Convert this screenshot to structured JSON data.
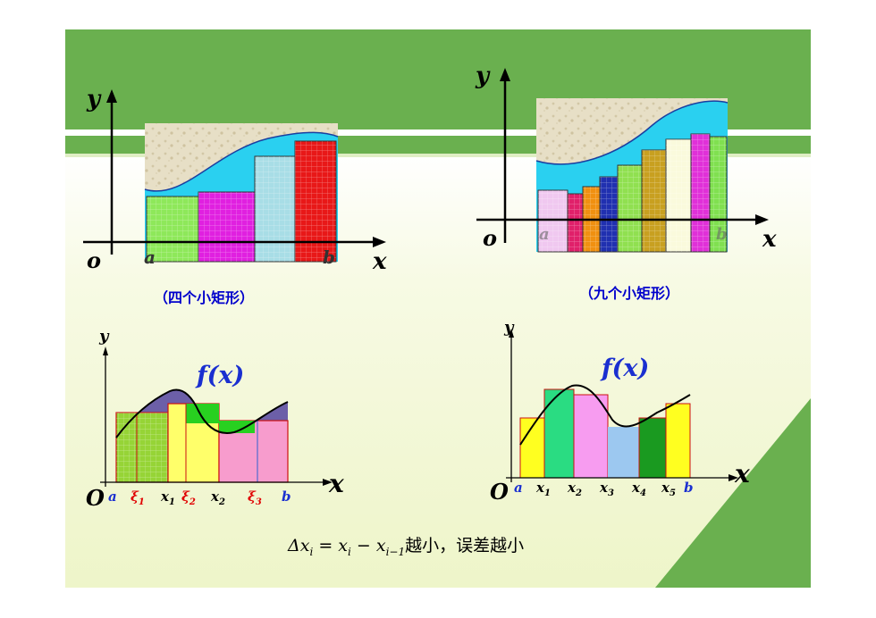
{
  "top_left": {
    "y_label": "y",
    "origin_label": "o",
    "x_label": "x",
    "a_label": "a",
    "b_label": "b",
    "caption": "（四个小矩形）",
    "rect_colors": [
      "#8ee85a",
      "#e020e0",
      "#a8dde6",
      "#e81818"
    ]
  },
  "top_right": {
    "y_label": "y",
    "origin_label": "o",
    "x_label": "x",
    "a_label": "a",
    "b_label": "b",
    "caption": "（九个小矩形）",
    "rect_colors": [
      "#f0c8f0",
      "#e0206a",
      "#f09010",
      "#2030b0",
      "#90e050",
      "#c8a020",
      "#fafadc",
      "#e030d8",
      "#80e050"
    ]
  },
  "bottom_left": {
    "y_label": "y",
    "function_label": "f(x)",
    "origin_label": "O",
    "x_label": "x",
    "ticks": [
      {
        "text": "a",
        "color": "#1a2fd0"
      },
      {
        "text": "ξ",
        "sub": "1",
        "color": "#e00000"
      },
      {
        "text": "x",
        "sub": "1",
        "color": "#000000"
      },
      {
        "text": "ξ",
        "sub": "2",
        "color": "#e00000"
      },
      {
        "text": "x",
        "sub": "2",
        "color": "#000000"
      },
      {
        "text": "ξ",
        "sub": "3",
        "color": "#e00000"
      },
      {
        "text": "b",
        "color": "#1a2fd0"
      }
    ]
  },
  "bottom_right": {
    "y_label": "y",
    "function_label": "f(x)",
    "origin_label": "O",
    "x_label": "x",
    "ticks": [
      {
        "text": "a",
        "color": "#1a2fd0"
      },
      {
        "text": "x",
        "sub": "1",
        "color": "#000000"
      },
      {
        "text": "x",
        "sub": "2",
        "color": "#000000"
      },
      {
        "text": "x",
        "sub": "3",
        "color": "#000000"
      },
      {
        "text": "x",
        "sub": "4",
        "color": "#000000"
      },
      {
        "text": "x",
        "sub": "5",
        "color": "#000000"
      },
      {
        "text": "b",
        "color": "#1a2fd0"
      }
    ]
  },
  "formula": {
    "lhs": "Δx",
    "lhs_sub": "i",
    "eq": " = x",
    "t1_sub": "i",
    "minus": " − x",
    "t2_sub": "i−1",
    "text": "越小，误差越小"
  },
  "colors": {
    "green_band": "#6ab04f",
    "curve_fill": "#2ad0f0",
    "function_label": "#1a2fd0"
  }
}
